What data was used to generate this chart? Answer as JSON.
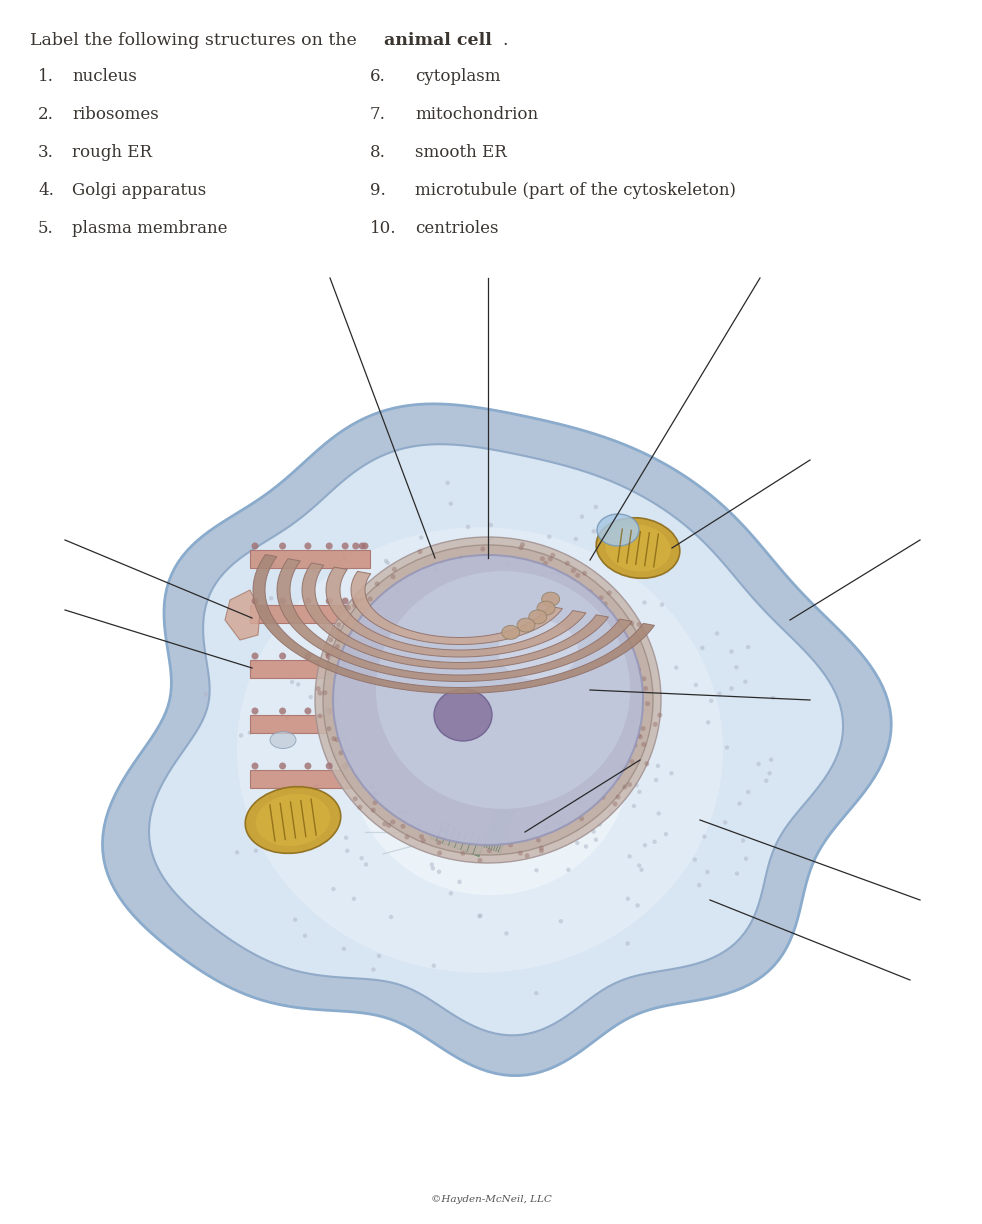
{
  "title_text": "Label the following structures on the ",
  "title_bold": "animal cell",
  "title_period": ".",
  "items_left": [
    {
      "num": "1.",
      "label": "nucleus"
    },
    {
      "num": "2.",
      "label": "ribosomes"
    },
    {
      "num": "3.",
      "label": "rough ER"
    },
    {
      "num": "4.",
      "label": "Golgi apparatus"
    },
    {
      "num": "5.",
      "label": "plasma membrane"
    }
  ],
  "items_right": [
    {
      "num": "6.",
      "label": "cytoplasm"
    },
    {
      "num": "7.",
      "label": "mitochondrion"
    },
    {
      "num": "8.",
      "label": "smooth ER"
    },
    {
      "num": "9.",
      "label": "microtubule (part of the cytoskeleton)"
    },
    {
      "num": "10.",
      "label": "centrioles"
    }
  ],
  "copyright": "©Hayden-McNeil, LLC",
  "bg_color": "#ffffff",
  "text_color": "#3a3530",
  "label_line_color": "#2a2a2a"
}
